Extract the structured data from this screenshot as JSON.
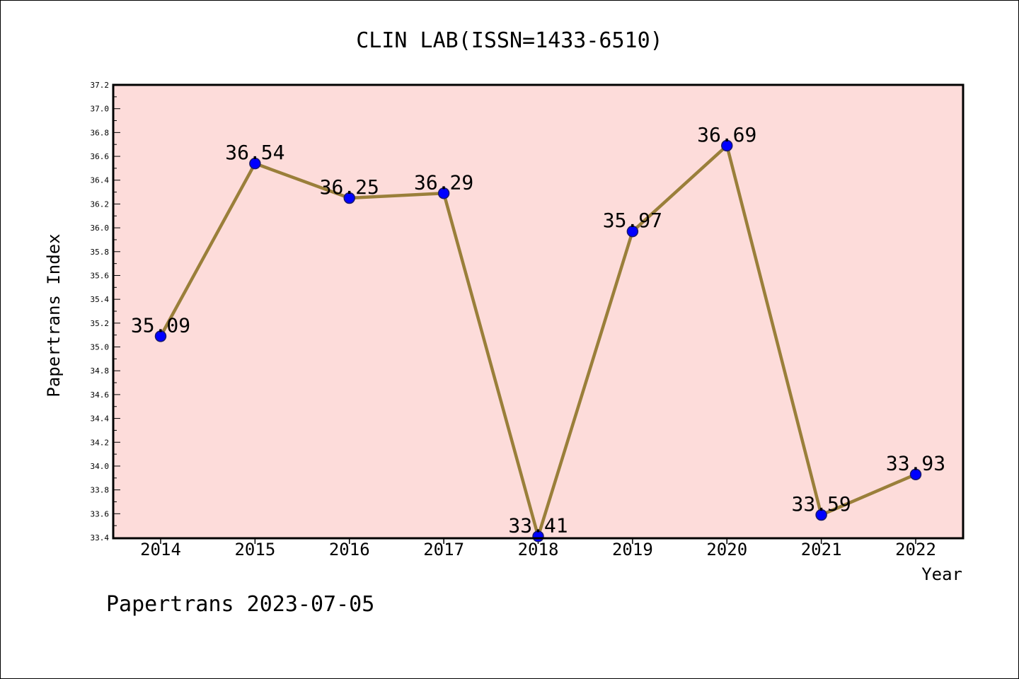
{
  "chart_data": {
    "type": "line",
    "title": "CLIN LAB(ISSN=1433-6510)",
    "xlabel": "Year",
    "ylabel": "Papertrans Index",
    "categories": [
      "2014",
      "2015",
      "2016",
      "2017",
      "2018",
      "2019",
      "2020",
      "2021",
      "2022"
    ],
    "values": [
      35.09,
      36.54,
      36.25,
      36.29,
      33.41,
      35.97,
      36.69,
      33.59,
      33.93
    ],
    "data_labels": [
      "35.09",
      "36.54",
      "36.25",
      "36.29",
      "33.41",
      "35.97",
      "36.69",
      "33.59",
      "33.93"
    ],
    "ylim": [
      33.4,
      37.2
    ],
    "yticks": [
      "33.4",
      "33.6",
      "33.8",
      "34.0",
      "34.2",
      "34.4",
      "34.6",
      "34.8",
      "35.0",
      "35.2",
      "35.4",
      "35.6",
      "35.8",
      "36.0",
      "36.2",
      "36.4",
      "36.6",
      "36.8",
      "37.0",
      "37.2"
    ],
    "grid": false,
    "colors": {
      "plot_background": "#fddcda",
      "line": "#9a7f3a",
      "marker": "#0000ff"
    }
  },
  "footer": "Papertrans 2023-07-05"
}
